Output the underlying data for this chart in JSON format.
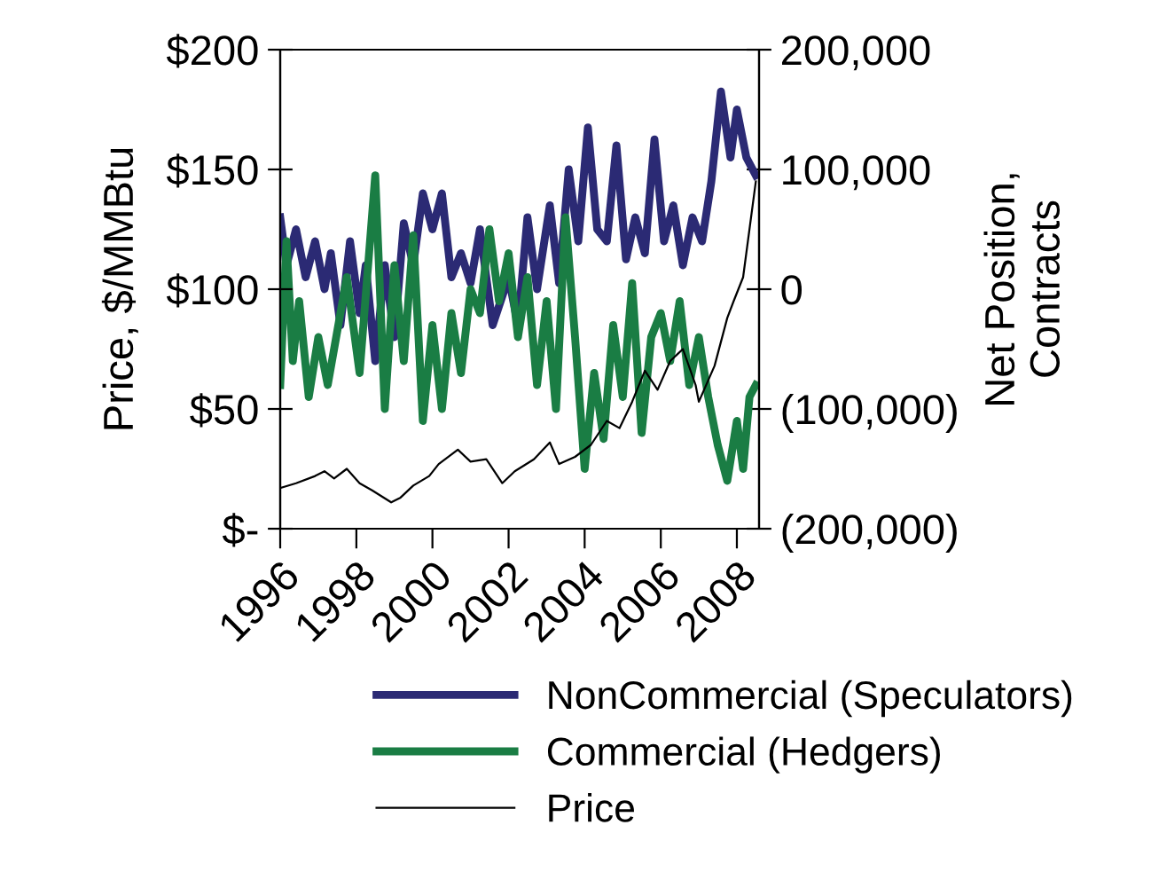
{
  "chart_data": {
    "type": "line",
    "ylabel": "Price, $/MMBtu",
    "y2label": "Net Position,\nContracts",
    "xlim": [
      "1996-01",
      "2008-08"
    ],
    "xticks": [
      {
        "value": "1996-01",
        "label": "1996"
      },
      {
        "value": "1998-01",
        "label": "1998"
      },
      {
        "value": "2000-01",
        "label": "2000"
      },
      {
        "value": "2002-01",
        "label": "2002"
      },
      {
        "value": "2004-01",
        "label": "2004"
      },
      {
        "value": "2006-01",
        "label": "2006"
      },
      {
        "value": "2008-01",
        "label": "2008"
      }
    ],
    "ylim": [
      0,
      200
    ],
    "yticks": [
      {
        "value": 0,
        "label": "$-"
      },
      {
        "value": 50,
        "label": "$50"
      },
      {
        "value": 100,
        "label": "$100"
      },
      {
        "value": 150,
        "label": "$150"
      },
      {
        "value": 200,
        "label": "$200"
      }
    ],
    "y2lim": [
      -200000,
      200000
    ],
    "y2ticks": [
      {
        "value": -200000,
        "label": "(200,000)"
      },
      {
        "value": -100000,
        "label": "(100,000)"
      },
      {
        "value": 0,
        "label": "0"
      },
      {
        "value": 100000,
        "label": "100,000"
      },
      {
        "value": 200000,
        "label": "200,000"
      }
    ],
    "legend": "bottom",
    "grid": false,
    "series": [
      {
        "name": "NonCommercial (Speculators)",
        "color": "#2b2a74",
        "axis": "y2",
        "x": [
          "1996-01",
          "1996-03",
          "1996-06",
          "1996-09",
          "1996-12",
          "1997-03",
          "1997-05",
          "1997-08",
          "1997-11",
          "1998-02",
          "1998-04",
          "1998-07",
          "1998-10",
          "1999-01",
          "1999-04",
          "1999-07",
          "1999-10",
          "2000-01",
          "2000-04",
          "2000-07",
          "2000-10",
          "2001-01",
          "2001-04",
          "2001-08",
          "2002-01",
          "2002-04",
          "2002-07",
          "2002-10",
          "2003-02",
          "2003-05",
          "2003-08",
          "2003-11",
          "2004-02",
          "2004-05",
          "2004-08",
          "2004-11",
          "2005-02",
          "2005-05",
          "2005-08",
          "2005-11",
          "2006-02",
          "2006-05",
          "2006-08",
          "2006-11",
          "2007-02",
          "2007-05",
          "2007-08",
          "2007-11",
          "2008-01",
          "2008-04",
          "2008-07"
        ],
        "values": [
          60000,
          20000,
          50000,
          10000,
          40000,
          0,
          30000,
          -30000,
          40000,
          -20000,
          20000,
          -60000,
          20000,
          -40000,
          55000,
          20000,
          80000,
          50000,
          80000,
          10000,
          30000,
          5000,
          50000,
          -30000,
          10000,
          -30000,
          60000,
          0,
          70000,
          5000,
          100000,
          40000,
          135000,
          50000,
          40000,
          120000,
          25000,
          60000,
          30000,
          125000,
          40000,
          70000,
          20000,
          60000,
          40000,
          90000,
          165000,
          110000,
          150000,
          110000,
          95000
        ]
      },
      {
        "name": "Commercial (Hedgers)",
        "color": "#1a7d44",
        "axis": "y2",
        "x": [
          "1996-01",
          "1996-03",
          "1996-05",
          "1996-07",
          "1996-10",
          "1997-01",
          "1997-04",
          "1997-10",
          "1998-02",
          "1998-07",
          "1998-10",
          "1999-01",
          "1999-04",
          "1999-07",
          "1999-10",
          "2000-01",
          "2000-04",
          "2000-07",
          "2000-10",
          "2001-01",
          "2001-04",
          "2001-07",
          "2001-10",
          "2002-01",
          "2002-04",
          "2002-07",
          "2002-10",
          "2003-01",
          "2003-04",
          "2003-07",
          "2003-10",
          "2004-01",
          "2004-04",
          "2004-07",
          "2004-10",
          "2005-01",
          "2005-04",
          "2005-07",
          "2005-10",
          "2006-01",
          "2006-04",
          "2006-07",
          "2006-10",
          "2007-01",
          "2007-04",
          "2007-07",
          "2007-10",
          "2008-01",
          "2008-03",
          "2008-05",
          "2008-07"
        ],
        "values": [
          -80000,
          40000,
          -60000,
          -10000,
          -90000,
          -40000,
          -80000,
          10000,
          -70000,
          95000,
          -100000,
          20000,
          -60000,
          45000,
          -110000,
          -30000,
          -100000,
          -20000,
          -70000,
          0,
          -20000,
          50000,
          -10000,
          30000,
          -40000,
          10000,
          -80000,
          -10000,
          -100000,
          60000,
          -40000,
          -150000,
          -70000,
          -125000,
          -30000,
          -90000,
          5000,
          -120000,
          -40000,
          -20000,
          -60000,
          -10000,
          -80000,
          -40000,
          -90000,
          -130000,
          -160000,
          -110000,
          -150000,
          -90000,
          -80000
        ]
      },
      {
        "name": "Price",
        "color": "#000000",
        "x": [
          "1996-01",
          "1996-06",
          "1996-12",
          "1997-03",
          "1997-06",
          "1997-10",
          "1998-02",
          "1998-06",
          "1998-12",
          "1999-03",
          "1999-07",
          "1999-12",
          "2000-03",
          "2000-09",
          "2001-01",
          "2001-06",
          "2001-11",
          "2002-03",
          "2002-09",
          "2003-02",
          "2003-05",
          "2003-10",
          "2004-03",
          "2004-08",
          "2004-12",
          "2005-04",
          "2005-08",
          "2005-12",
          "2006-04",
          "2006-08",
          "2006-12",
          "2007-01",
          "2007-06",
          "2007-10",
          "2007-12",
          "2008-03",
          "2008-05",
          "2008-07"
        ],
        "values": [
          17,
          19,
          22,
          24,
          21,
          25,
          19,
          16,
          11,
          13,
          18,
          22,
          27,
          33,
          28,
          29,
          19,
          24,
          29,
          36,
          27,
          30,
          35,
          45,
          42,
          53,
          66,
          58,
          70,
          75,
          60,
          53,
          68,
          88,
          95,
          105,
          125,
          145
        ]
      }
    ]
  }
}
